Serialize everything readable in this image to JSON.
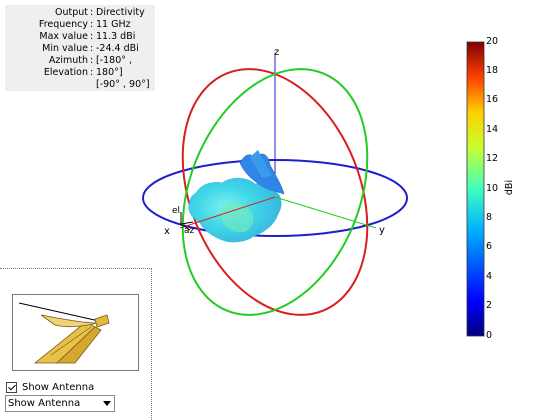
{
  "info": {
    "rows": [
      {
        "key": "Output",
        "value": "Directivity"
      },
      {
        "key": "Frequency",
        "value": "11 GHz"
      },
      {
        "key": "Max value",
        "value": "11.3 dBi"
      },
      {
        "key": "Min value",
        "value": "-24.4 dBi"
      },
      {
        "key": "Azimuth",
        "value": "[-180° ,"
      },
      {
        "key": "Elevation",
        "value": "180°]"
      },
      {
        "key": "",
        "value": "[-90° , 90°]"
      }
    ]
  },
  "axes": {
    "x": "x",
    "y": "y",
    "z": "z",
    "el": "el",
    "az": "az"
  },
  "colorbar": {
    "unit": "dBi",
    "min": 0,
    "max": 20,
    "ticks": [
      "20",
      "18",
      "16",
      "14",
      "12",
      "10",
      "8",
      "6",
      "4",
      "2",
      "0"
    ]
  },
  "colors": {
    "elevation_cut": "#d81e1e",
    "azimuth_cut": "#1e1ecc",
    "orthogonal_cut": "#22cc22",
    "pattern": "#3fd8e6",
    "panel_bg": "#efefef"
  },
  "controls": {
    "show_antenna_label": "Show Antenna",
    "show_antenna_checked": true,
    "view_select_value": "Show Antenna"
  }
}
